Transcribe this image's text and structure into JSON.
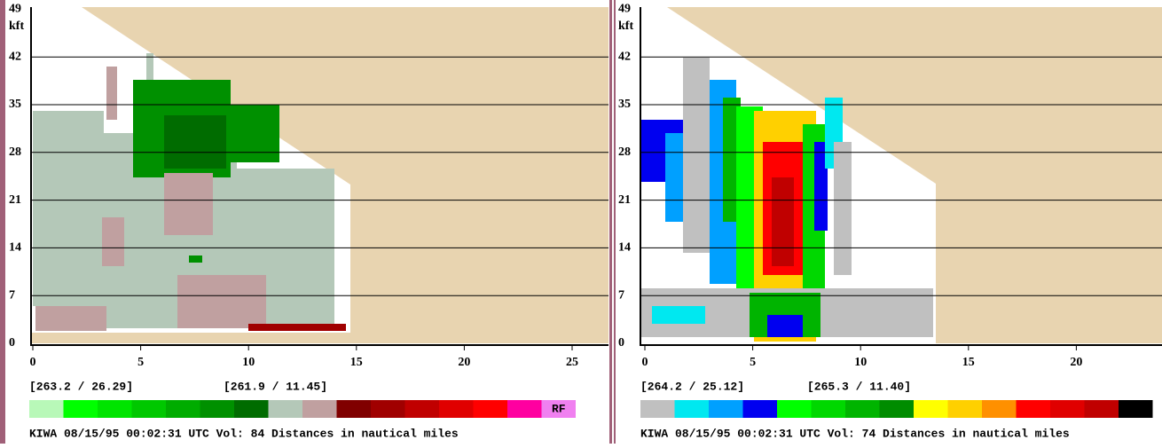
{
  "panels": [
    {
      "y_unit": "kft",
      "y_ticks": [
        "0",
        "7",
        "14",
        "21",
        "28",
        "35",
        "42",
        "49"
      ],
      "x_ticks": [
        "0",
        "5",
        "10",
        "15",
        "20",
        "25"
      ],
      "coords": [
        "[263.2 /  26.29]",
        "[261.9 /  11.45]"
      ],
      "colorbar": {
        "colors": [
          "#b8f8b8",
          "#00ff00",
          "#00e400",
          "#00c800",
          "#00ac00",
          "#009000",
          "#006c00",
          "#b4c8b8",
          "#c0a0a0",
          "#800000",
          "#a00000",
          "#c00000",
          "#e00000",
          "#ff0000",
          "#ff00a0"
        ],
        "end_label": "RF",
        "end_color": "#f080f0"
      },
      "footer": "KIWA 08/15/95 00:02:31 UTC Vol: 84 Distances in nautical miles"
    },
    {
      "y_unit": "kft",
      "y_ticks": [
        "0",
        "7",
        "14",
        "21",
        "28",
        "35",
        "42",
        "49"
      ],
      "x_ticks": [
        "0",
        "5",
        "10",
        "15",
        "20"
      ],
      "coords": [
        "[264.2 /  25.12]",
        "[265.3 /  11.40]"
      ],
      "colorbar": {
        "colors": [
          "#c0c0c0",
          "#00e8f0",
          "#00a0ff",
          "#0000f0",
          "#00ff00",
          "#00d800",
          "#00b400",
          "#008c00",
          "#ffff00",
          "#ffd000",
          "#ff9000",
          "#ff0000",
          "#e00000",
          "#c00000",
          "#000000"
        ]
      },
      "footer": "KIWA 08/15/95 00:02:31 UTC Vol: 74 Distances in nautical miles"
    }
  ]
}
